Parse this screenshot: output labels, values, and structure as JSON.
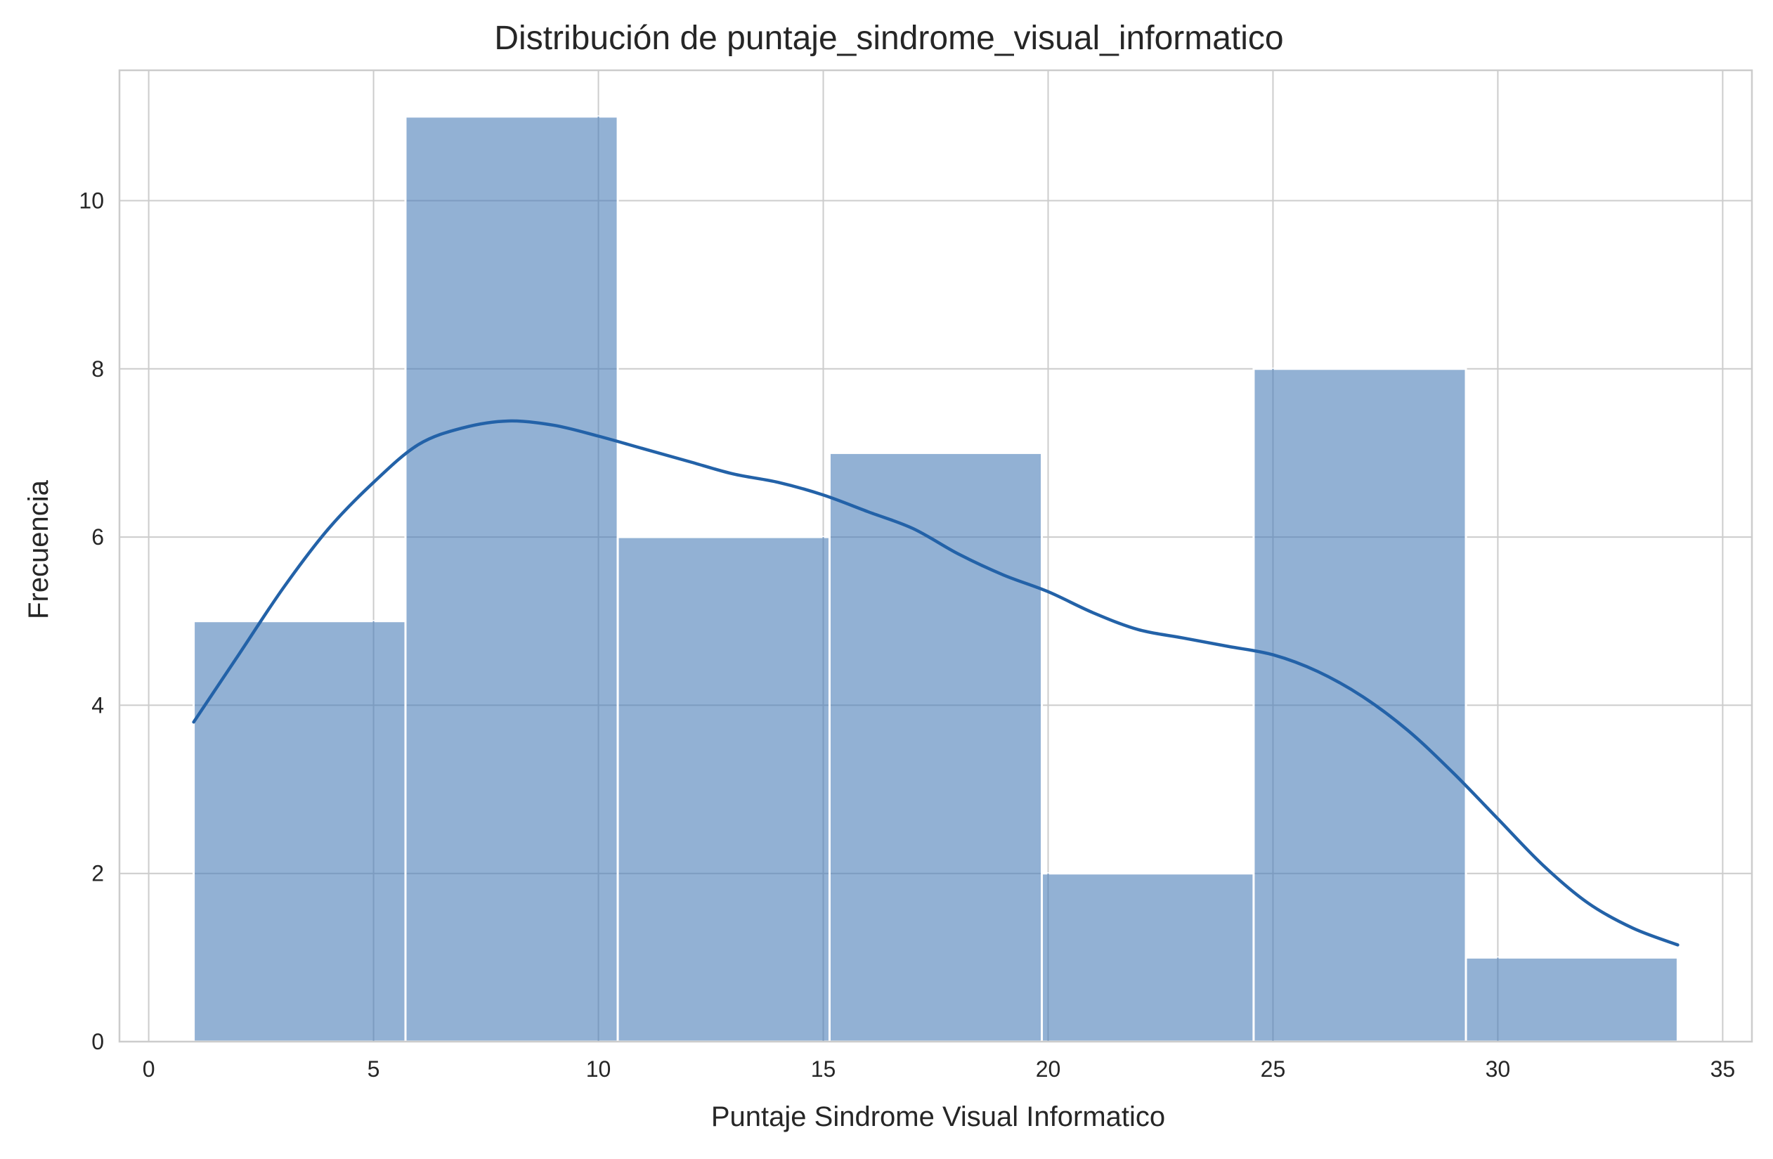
{
  "chart_data": {
    "type": "bar",
    "title": "Distribución de puntaje_sindrome_visual_informatico",
    "xlabel": "Puntaje Sindrome Visual Informatico",
    "ylabel": "Frecuencia",
    "xlim": [
      -0.65,
      35.65
    ],
    "ylim": [
      0,
      11.55
    ],
    "xticks": [
      0,
      5,
      10,
      15,
      20,
      25,
      30,
      35
    ],
    "yticks": [
      0,
      2,
      4,
      6,
      8,
      10
    ],
    "grid": true,
    "bins": [
      {
        "x0": 1.0,
        "x1": 5.71,
        "count": 5
      },
      {
        "x0": 5.71,
        "x1": 10.43,
        "count": 11
      },
      {
        "x0": 10.43,
        "x1": 15.14,
        "count": 6
      },
      {
        "x0": 15.14,
        "x1": 19.86,
        "count": 7
      },
      {
        "x0": 19.86,
        "x1": 24.57,
        "count": 2
      },
      {
        "x0": 24.57,
        "x1": 29.29,
        "count": 8
      },
      {
        "x0": 29.29,
        "x1": 34.0,
        "count": 1
      }
    ],
    "kde": {
      "x": [
        1,
        2,
        3,
        4,
        5,
        6,
        7,
        8,
        9,
        10,
        11,
        12,
        13,
        14,
        15,
        16,
        17,
        18,
        19,
        20,
        21,
        22,
        23,
        24,
        25,
        26,
        27,
        28,
        29,
        30,
        31,
        32,
        33,
        34
      ],
      "y": [
        3.8,
        4.6,
        5.4,
        6.1,
        6.65,
        7.1,
        7.3,
        7.38,
        7.33,
        7.2,
        7.05,
        6.9,
        6.75,
        6.65,
        6.5,
        6.3,
        6.1,
        5.8,
        5.55,
        5.35,
        5.1,
        4.9,
        4.8,
        4.7,
        4.6,
        4.4,
        4.1,
        3.7,
        3.2,
        2.65,
        2.1,
        1.65,
        1.35,
        1.15
      ]
    },
    "colors": {
      "bar_fill": "#92b1d4",
      "bar_edge": "#ffffff",
      "kde_line": "#2362a8",
      "grid": "#cccccc",
      "background": "#ffffff"
    }
  }
}
